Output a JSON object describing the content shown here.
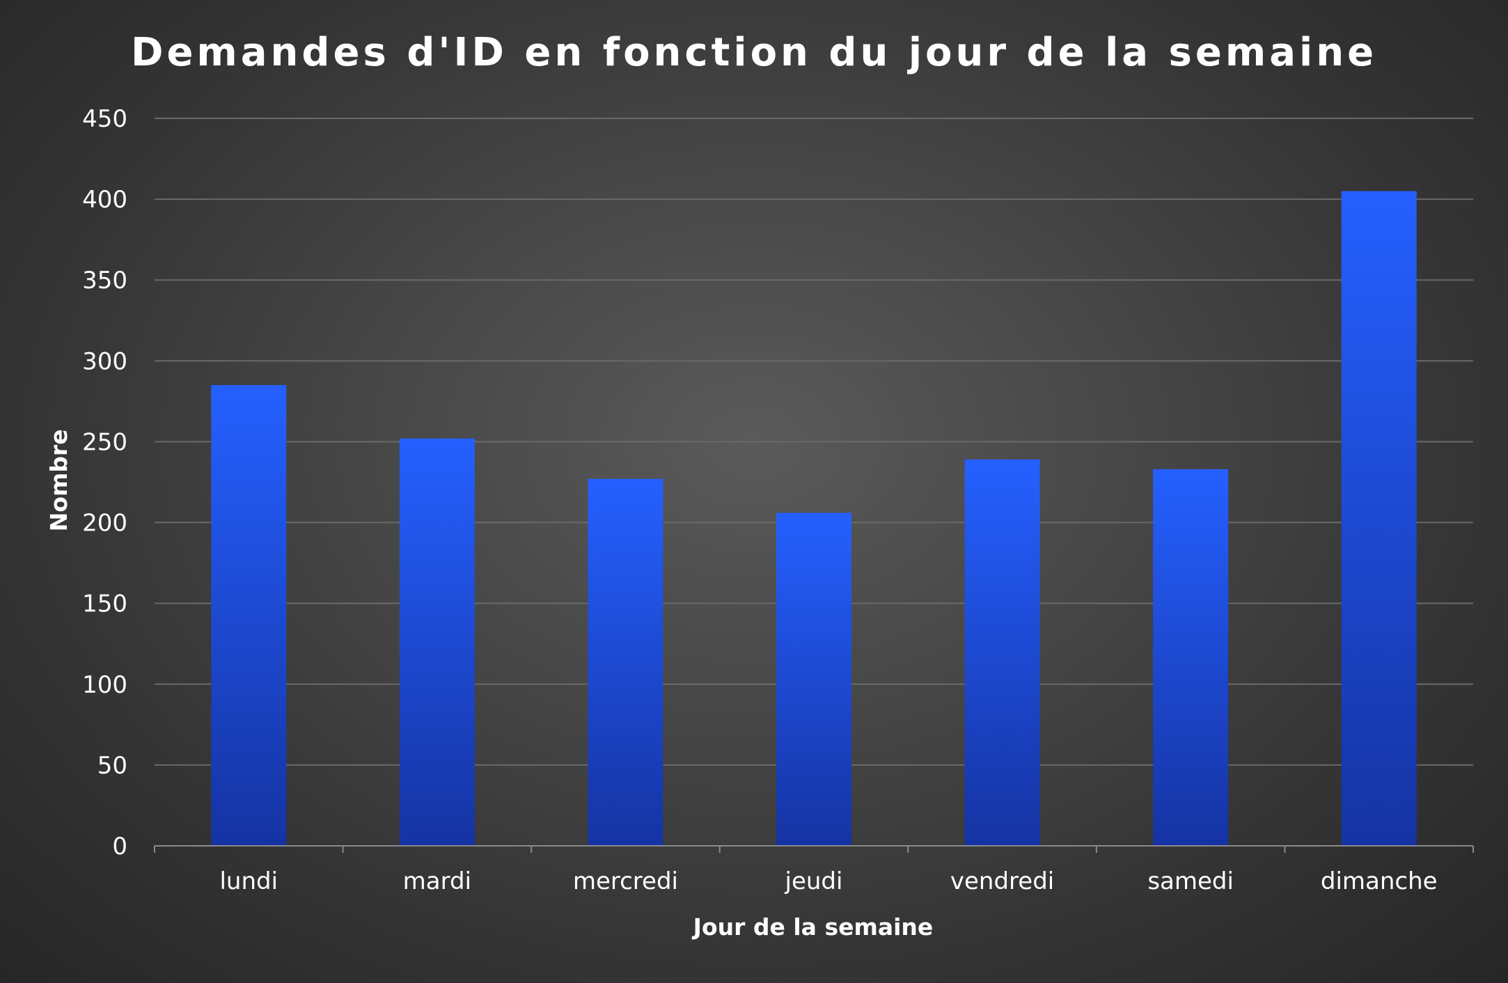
{
  "chart_data": {
    "type": "bar",
    "title": "Demandes d'ID en fonction du jour de la semaine",
    "xlabel": "Jour de la semaine",
    "ylabel": "Nombre",
    "categories": [
      "lundi",
      "mardi",
      "mercredi",
      "jeudi",
      "vendredi",
      "samedi",
      "dimanche"
    ],
    "values": [
      285,
      252,
      227,
      206,
      239,
      233,
      405
    ],
    "ylim": [
      0,
      450
    ],
    "yticks": [
      0,
      50,
      100,
      150,
      200,
      250,
      300,
      350,
      400,
      450
    ],
    "grid": true,
    "legend": "none",
    "colors": {
      "bar_top": "#2560ff",
      "bar_bottom": "#1533a3",
      "gridline": "#6a6a6a",
      "axis": "#8a8a8a",
      "text": "#ffffff"
    }
  }
}
